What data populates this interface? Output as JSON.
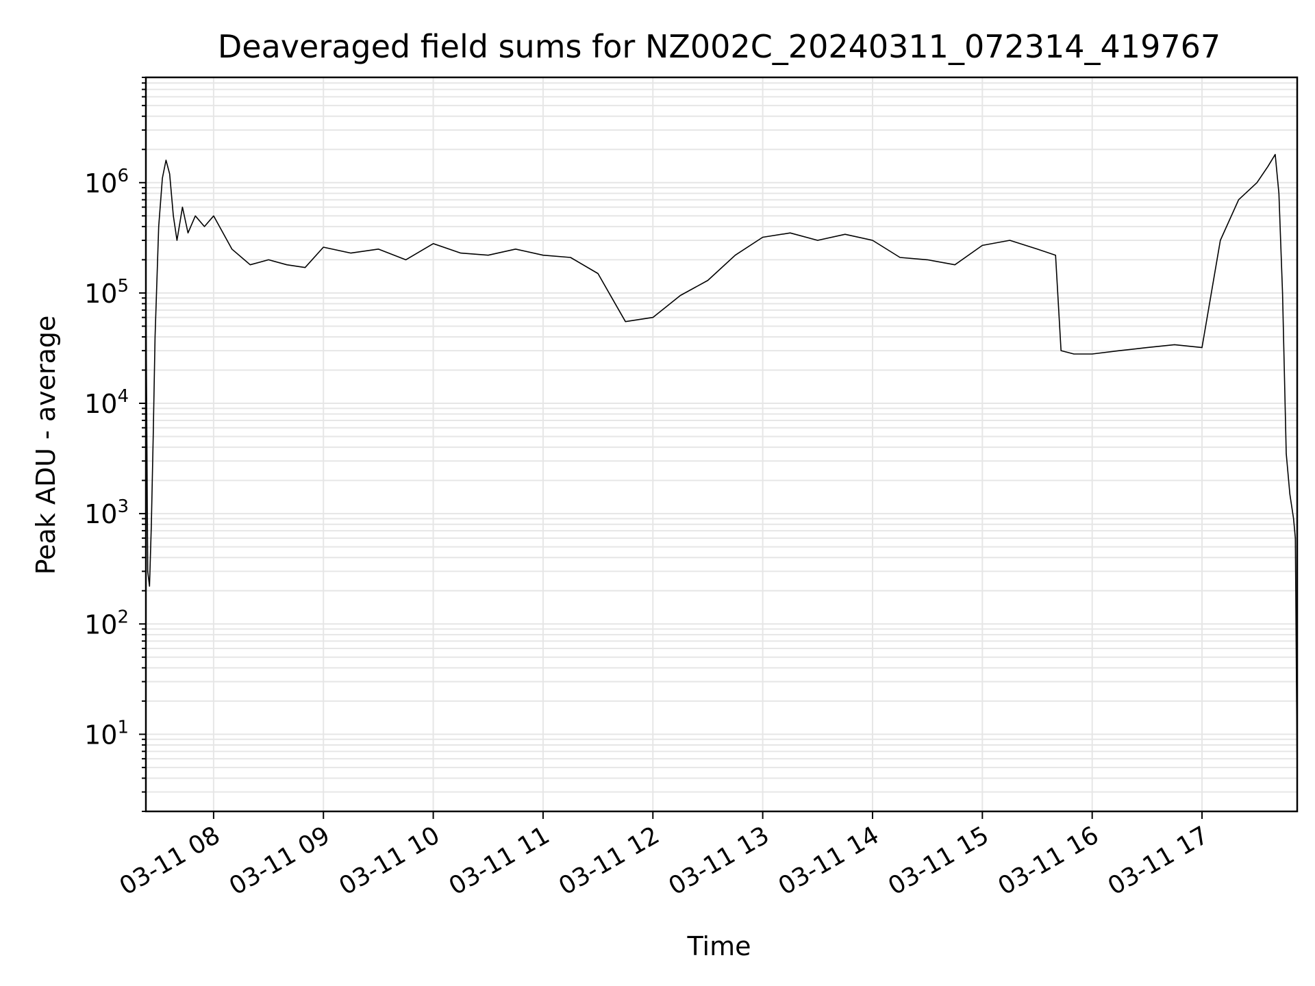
{
  "chart_data": {
    "type": "line",
    "title": "Deaveraged field sums for NZ002C_20240311_072314_419767",
    "xlabel": "Time",
    "ylabel": "Peak ADU - average",
    "yscale": "log",
    "ylim": [
      2,
      9000000
    ],
    "xlim": [
      "2024-03-11T07:23",
      "2024-03-11T17:52"
    ],
    "grid": true,
    "line_color": "#000000",
    "grid_color": "#e6e6e6",
    "x_ticks": [
      {
        "t": "2024-03-11T08:00",
        "label": "03-11 08"
      },
      {
        "t": "2024-03-11T09:00",
        "label": "03-11 09"
      },
      {
        "t": "2024-03-11T10:00",
        "label": "03-11 10"
      },
      {
        "t": "2024-03-11T11:00",
        "label": "03-11 11"
      },
      {
        "t": "2024-03-11T12:00",
        "label": "03-11 12"
      },
      {
        "t": "2024-03-11T13:00",
        "label": "03-11 13"
      },
      {
        "t": "2024-03-11T14:00",
        "label": "03-11 14"
      },
      {
        "t": "2024-03-11T15:00",
        "label": "03-11 15"
      },
      {
        "t": "2024-03-11T16:00",
        "label": "03-11 16"
      },
      {
        "t": "2024-03-11T17:00",
        "label": "03-11 17"
      }
    ],
    "y_ticks": [
      {
        "value": 10,
        "base": "10",
        "exp": "1"
      },
      {
        "value": 100,
        "base": "10",
        "exp": "2"
      },
      {
        "value": 1000,
        "base": "10",
        "exp": "3"
      },
      {
        "value": 10000,
        "base": "10",
        "exp": "4"
      },
      {
        "value": 100000,
        "base": "10",
        "exp": "5"
      },
      {
        "value": 1000000,
        "base": "10",
        "exp": "6"
      }
    ],
    "series": [
      {
        "x": [
          "2024-03-11T07:23",
          "2024-03-11T07:24",
          "2024-03-11T07:25",
          "2024-03-11T07:26",
          "2024-03-11T07:27",
          "2024-03-11T07:28",
          "2024-03-11T07:30",
          "2024-03-11T07:32",
          "2024-03-11T07:34",
          "2024-03-11T07:36",
          "2024-03-11T07:38",
          "2024-03-11T07:40",
          "2024-03-11T07:43",
          "2024-03-11T07:46",
          "2024-03-11T07:50",
          "2024-03-11T07:55",
          "2024-03-11T08:00",
          "2024-03-11T08:10",
          "2024-03-11T08:20",
          "2024-03-11T08:30",
          "2024-03-11T08:40",
          "2024-03-11T08:50",
          "2024-03-11T09:00",
          "2024-03-11T09:15",
          "2024-03-11T09:30",
          "2024-03-11T09:45",
          "2024-03-11T10:00",
          "2024-03-11T10:15",
          "2024-03-11T10:30",
          "2024-03-11T10:45",
          "2024-03-11T11:00",
          "2024-03-11T11:15",
          "2024-03-11T11:30",
          "2024-03-11T11:45",
          "2024-03-11T12:00",
          "2024-03-11T12:15",
          "2024-03-11T12:30",
          "2024-03-11T12:45",
          "2024-03-11T13:00",
          "2024-03-11T13:15",
          "2024-03-11T13:30",
          "2024-03-11T13:45",
          "2024-03-11T14:00",
          "2024-03-11T14:15",
          "2024-03-11T14:30",
          "2024-03-11T14:45",
          "2024-03-11T15:00",
          "2024-03-11T15:15",
          "2024-03-11T15:30",
          "2024-03-11T15:40",
          "2024-03-11T15:43",
          "2024-03-11T15:50",
          "2024-03-11T16:00",
          "2024-03-11T16:15",
          "2024-03-11T16:30",
          "2024-03-11T16:45",
          "2024-03-11T17:00",
          "2024-03-11T17:10",
          "2024-03-11T17:20",
          "2024-03-11T17:30",
          "2024-03-11T17:36",
          "2024-03-11T17:40",
          "2024-03-11T17:42",
          "2024-03-11T17:44",
          "2024-03-11T17:46",
          "2024-03-11T17:48",
          "2024-03-11T17:50",
          "2024-03-11T17:51",
          "2024-03-11T17:52"
        ],
        "y": [
          120000,
          300,
          220,
          800,
          5000,
          40000,
          400000,
          1100000,
          1600000,
          1200000,
          500000,
          300000,
          600000,
          350000,
          500000,
          400000,
          500000,
          250000,
          180000,
          200000,
          180000,
          170000,
          260000,
          230000,
          250000,
          200000,
          280000,
          230000,
          220000,
          250000,
          220000,
          210000,
          150000,
          55000,
          60000,
          95000,
          130000,
          220000,
          320000,
          350000,
          300000,
          340000,
          300000,
          210000,
          200000,
          180000,
          270000,
          300000,
          250000,
          220000,
          30000,
          28000,
          28000,
          30000,
          32000,
          34000,
          32000,
          300000,
          700000,
          1000000,
          1400000,
          1800000,
          800000,
          100000,
          3500,
          1500,
          900,
          600,
          4
        ]
      }
    ]
  }
}
